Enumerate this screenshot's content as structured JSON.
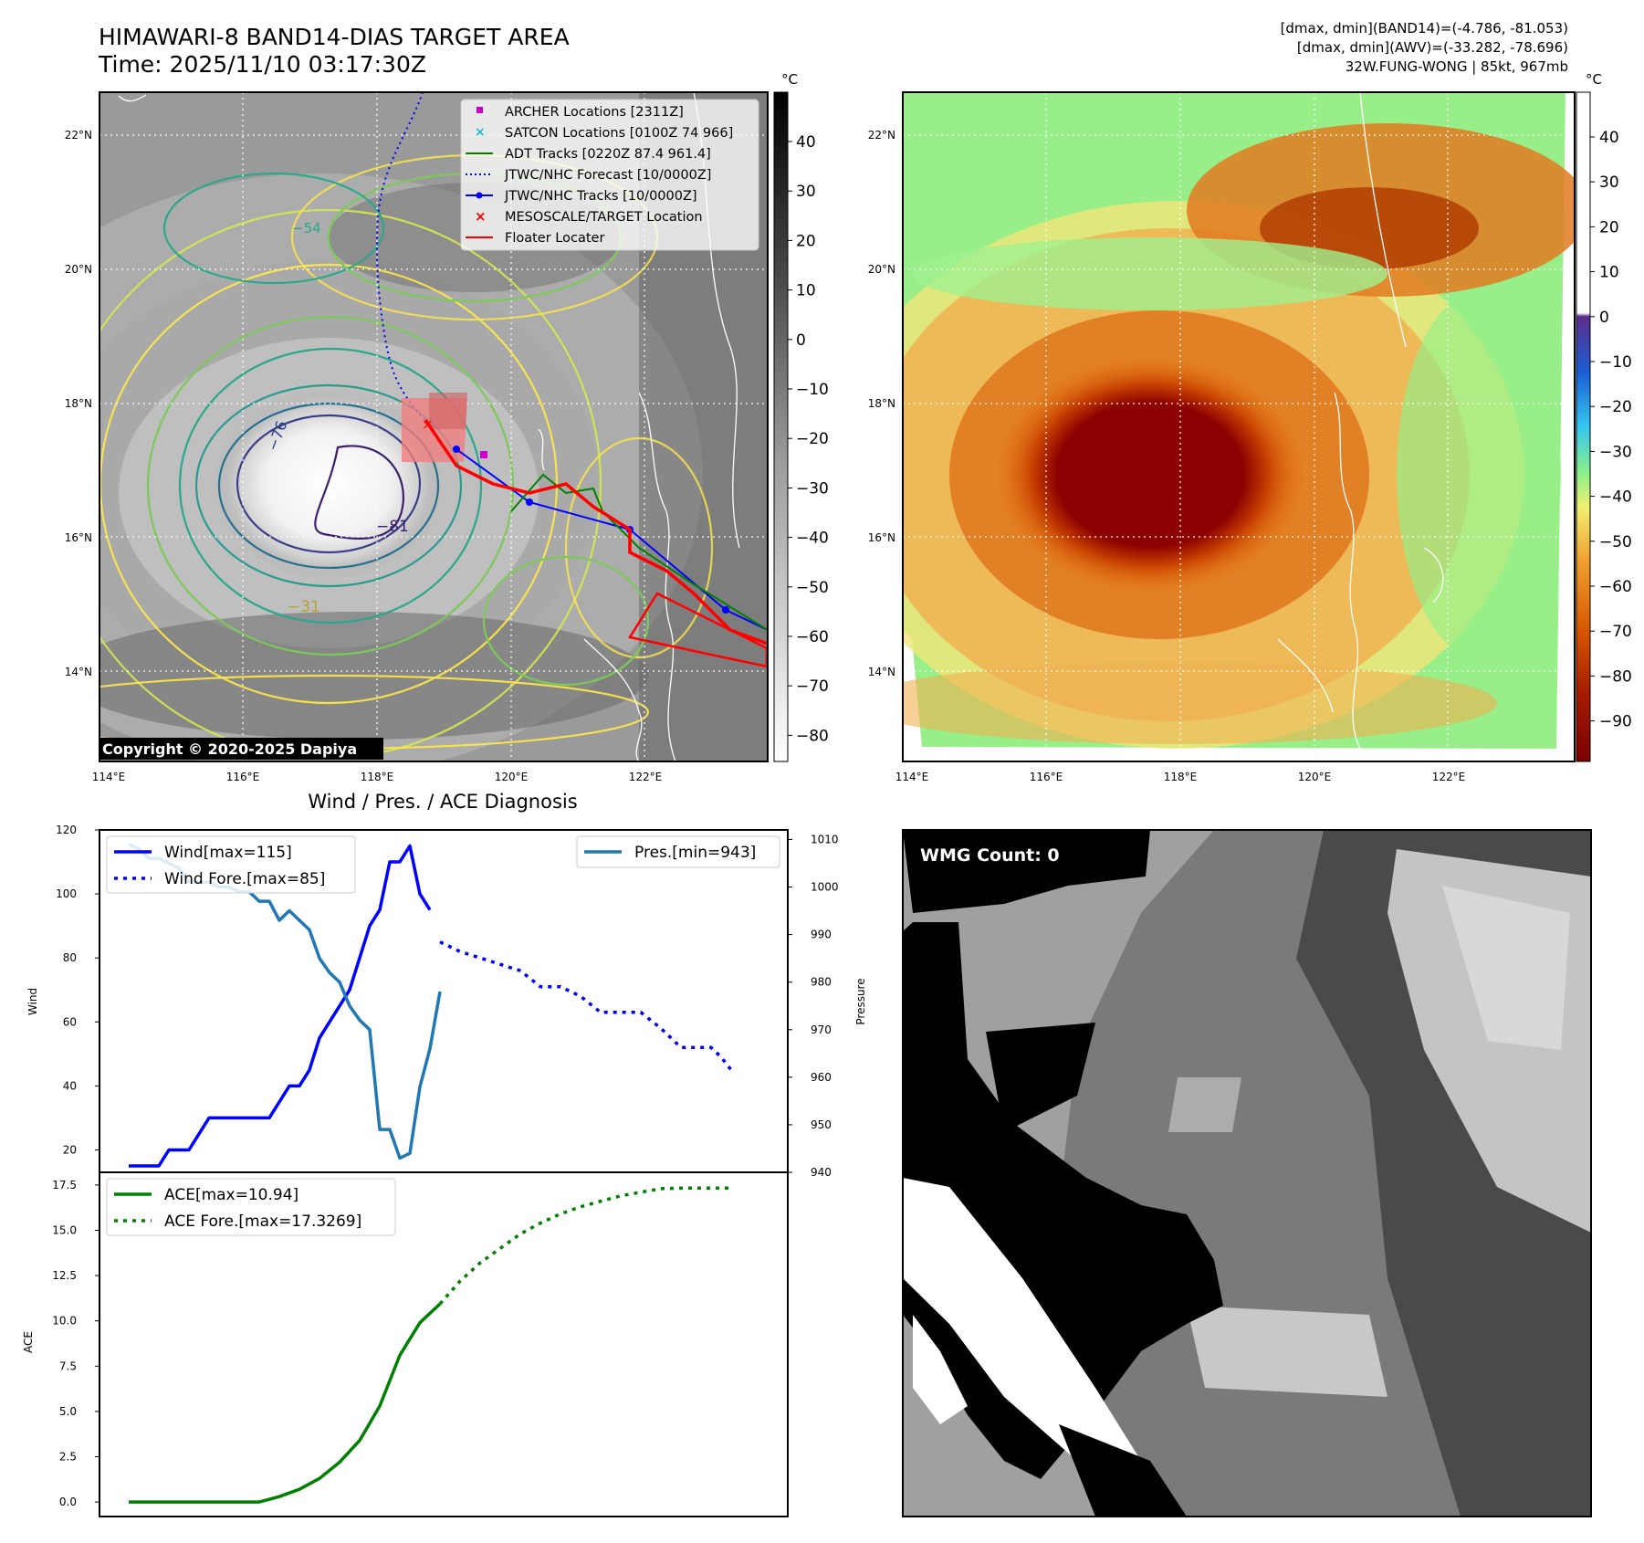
{
  "header": {
    "title_line1": "HIMAWARI-8 BAND14-DIAS TARGET AREA",
    "title_line2": "Time: 2025/11/10 03:17:30Z",
    "right_line1": "[dmax, dmin](BAND14)=(-4.786, -81.053)",
    "right_line2": "[dmax, dmin](AWV)=(-33.282, -78.696)",
    "right_line3": "32W.FUNG-WONG | 85kt, 967mb"
  },
  "map_axes": {
    "lon_ticks": [
      "114°E",
      "116°E",
      "118°E",
      "120°E",
      "122°E"
    ],
    "lat_ticks": [
      "22°N",
      "20°N",
      "18°N",
      "16°N",
      "14°N"
    ]
  },
  "band14_panel": {
    "colorbar_unit": "°C",
    "colorbar_ticks": [
      "40",
      "30",
      "20",
      "10",
      "0",
      "−10",
      "−20",
      "−30",
      "−40",
      "−50",
      "−60",
      "−70",
      "−80"
    ],
    "copyright": "Copyright © 2020-2025 Dapiya",
    "contour_labels": [
      "−76",
      "−81",
      "−31",
      "−54"
    ],
    "legend": [
      {
        "label": "ARCHER Locations [2311Z]",
        "color": "#cc00cc",
        "symbol": "square"
      },
      {
        "label": "SATCON Locations [0100Z 74 966]",
        "color": "#17becf",
        "symbol": "x"
      },
      {
        "label": "ADT Tracks [0220Z 87.4 961.4]",
        "color": "#008000",
        "symbol": "line"
      },
      {
        "label": "JTWC/NHC Forecast [10/0000Z]",
        "color": "#0000ff",
        "symbol": "dotted"
      },
      {
        "label": "JTWC/NHC Tracks [10/0000Z]",
        "color": "#0000ff",
        "symbol": "line-dot"
      },
      {
        "label": "MESOSCALE/TARGET Location",
        "color": "#ff0000",
        "symbol": "x"
      },
      {
        "label": "Floater Locater",
        "color": "#ff0000",
        "symbol": "line"
      }
    ]
  },
  "awv_panel": {
    "colorbar_unit": "°C",
    "colorbar_ticks": [
      "40",
      "30",
      "20",
      "10",
      "0",
      "−10",
      "−20",
      "−30",
      "−40",
      "−50",
      "−60",
      "−70",
      "−80",
      "−90"
    ]
  },
  "wmg_panel": {
    "label": "WMG Count: 0"
  },
  "chart_data": [
    {
      "type": "line",
      "title": "Wind / Pres. / ACE Diagnosis",
      "ylabel": "Wind",
      "ylabel_right": "Pressure",
      "ylim": [
        13,
        120
      ],
      "ylim_right": [
        940,
        1012
      ],
      "yticks": [
        "20",
        "40",
        "60",
        "80",
        "100",
        "120"
      ],
      "yticks_right": [
        "940",
        "950",
        "960",
        "970",
        "980",
        "990",
        "1000",
        "1010"
      ],
      "legend_left": [
        "Wind[max=115]",
        "Wind Fore.[max=85]"
      ],
      "legend_right": [
        "Pres.[min=943]"
      ],
      "series": [
        {
          "name": "Wind[max=115]",
          "color": "#0000ff",
          "style": "solid",
          "x": [
            0,
            1,
            2,
            3,
            4,
            5,
            6,
            7,
            8,
            9,
            10,
            11,
            12,
            13,
            14,
            15,
            16,
            17,
            18,
            19,
            20,
            21,
            22,
            23,
            24,
            25,
            26,
            27,
            28,
            29,
            30
          ],
          "values": [
            15,
            15,
            15,
            15,
            20,
            20,
            20,
            25,
            30,
            30,
            30,
            30,
            30,
            30,
            30,
            35,
            40,
            40,
            45,
            55,
            60,
            65,
            70,
            80,
            90,
            95,
            110,
            110,
            115,
            100,
            95
          ]
        },
        {
          "name": "Wind Fore.[max=85]",
          "color": "#0000ff",
          "style": "dotted",
          "x": [
            31,
            33,
            35,
            37,
            39,
            41,
            43,
            45,
            47,
            49,
            51,
            53,
            55,
            57,
            58,
            59,
            60
          ],
          "values": [
            85,
            82,
            80,
            78,
            76,
            71,
            71,
            68,
            63,
            63,
            63,
            58,
            52,
            52,
            52,
            49,
            45
          ]
        },
        {
          "name": "Pres.[min=943]",
          "color": "#1f77b4",
          "style": "solid",
          "axis": "right",
          "x": [
            0,
            1,
            2,
            3,
            4,
            5,
            6,
            7,
            8,
            9,
            10,
            11,
            12,
            13,
            14,
            15,
            16,
            17,
            18,
            19,
            20,
            21,
            22,
            23,
            24,
            25,
            26,
            27,
            28,
            29,
            30,
            31
          ],
          "values": [
            1009,
            1008,
            1006,
            1006,
            1005,
            1004,
            1001,
            1001,
            1001,
            1000,
            1000,
            999,
            999,
            997,
            997,
            993,
            995,
            993,
            991,
            985,
            982,
            980,
            975,
            972,
            970,
            949,
            949,
            943,
            944,
            958,
            966,
            978
          ]
        }
      ]
    },
    {
      "type": "line",
      "ylabel": "ACE",
      "ylim": [
        -0.8,
        18.2
      ],
      "yticks": [
        "0.0",
        "2.5",
        "5.0",
        "7.5",
        "10.0",
        "12.5",
        "15.0",
        "17.5"
      ],
      "legend": [
        "ACE[max=10.94]",
        "ACE Fore.[max=17.3269]"
      ],
      "series": [
        {
          "name": "ACE[max=10.94]",
          "color": "#008000",
          "style": "solid",
          "x": [
            0,
            13,
            15,
            17,
            19,
            21,
            23,
            25,
            27,
            29,
            31
          ],
          "values": [
            0,
            0,
            0.3,
            0.7,
            1.3,
            2.2,
            3.4,
            5.3,
            8.1,
            9.9,
            10.94
          ]
        },
        {
          "name": "ACE Fore.[max=17.3269]",
          "color": "#008000",
          "style": "dotted",
          "x": [
            31,
            33,
            35,
            37,
            39,
            41,
            43,
            45,
            47,
            49,
            51,
            53,
            55,
            57,
            58,
            59,
            60
          ],
          "values": [
            10.94,
            12.2,
            13.2,
            14.0,
            14.8,
            15.4,
            15.9,
            16.3,
            16.6,
            16.9,
            17.1,
            17.3,
            17.3269,
            17.3269,
            17.3269,
            17.3269,
            17.3269
          ]
        }
      ]
    }
  ]
}
